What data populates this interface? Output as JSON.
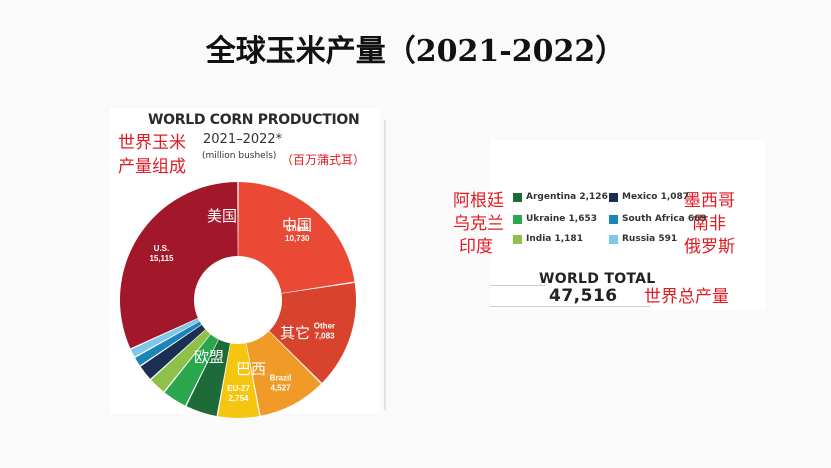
{
  "slide": {
    "title": "全球玉米产量（2021-2022）"
  },
  "chart_data": {
    "type": "pie",
    "title": "WORLD CORN PRODUCTION",
    "subtitle": "2021–2022*",
    "unit": "(million bushels)",
    "slices": [
      {
        "name": "U.S.",
        "value": 15115,
        "value_label": "15,115",
        "color": "#a3172a"
      },
      {
        "name": "China",
        "value": 10730,
        "value_label": "10,730",
        "color": "#ea4a35"
      },
      {
        "name": "Other",
        "value": 7083,
        "value_label": "7,083",
        "color": "#d8432d"
      },
      {
        "name": "Brazil",
        "value": 4527,
        "value_label": "4,527",
        "color": "#f09a27"
      },
      {
        "name": "EU-27",
        "value": 2754,
        "value_label": "2,754",
        "color": "#f6c50f"
      },
      {
        "name": "Argentina",
        "value": 2126,
        "value_label": "2,126",
        "color": "#1d6b38"
      },
      {
        "name": "Ukraine",
        "value": 1653,
        "value_label": "1,653",
        "color": "#2aa74c"
      },
      {
        "name": "India",
        "value": 1181,
        "value_label": "1,181",
        "color": "#8fc04a"
      },
      {
        "name": "Mexico",
        "value": 1087,
        "value_label": "1,087",
        "color": "#1b2f52"
      },
      {
        "name": "South Africa",
        "value": 669,
        "value_label": "669",
        "color": "#1a86b8"
      },
      {
        "name": "Russia",
        "value": 591,
        "value_label": "591",
        "color": "#7ec6ea"
      }
    ],
    "legend": [
      {
        "label": "Argentina 2,126",
        "color": "#1d6b38"
      },
      {
        "label": "Mexico 1,087",
        "color": "#1b2f52"
      },
      {
        "label": "Ukraine 1,653",
        "color": "#2aa74c"
      },
      {
        "label": "South Africa 669",
        "color": "#1a86b8"
      },
      {
        "label": "India 1,181",
        "color": "#8fc04a"
      },
      {
        "label": "Russia 591",
        "color": "#7ec6ea"
      }
    ],
    "total_label": "WORLD TOTAL",
    "total_value": "47,516"
  },
  "annotations": {
    "title_cn_1": "世界玉米",
    "title_cn_2": "产量组成",
    "unit_cn": "（百万蒲式耳）",
    "us": "美国",
    "china": "中国",
    "other": "其它",
    "eu": "欧盟",
    "brazil": "巴西",
    "argentina": "阿根廷",
    "ukraine": "乌克兰",
    "india": "印度",
    "mexico": "墨西哥",
    "south_africa": "南非",
    "russia": "俄罗斯",
    "total": "世界总产量"
  }
}
